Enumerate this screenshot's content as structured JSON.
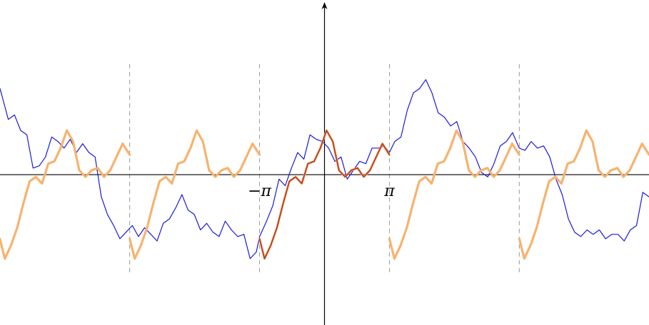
{
  "chart_data": {
    "type": "line",
    "title": "",
    "xlabel": "",
    "ylabel": "",
    "xlim": [
      -15.7,
      15.7
    ],
    "ylim": [
      -6.8,
      7.9
    ],
    "grid": false,
    "x_tick_labels": [
      {
        "x": -3.1416,
        "label": "−π"
      },
      {
        "x": 3.1416,
        "label": "π"
      }
    ],
    "dashed_vertical_lines_at": [
      -9.4248,
      -3.1416,
      3.1416,
      9.4248
    ],
    "colors": {
      "random_walk": "#1a1adb",
      "periodic_extension": "#f7b26e",
      "base_period": "#b0382c",
      "axes": "#000000",
      "guides": "#9a9a9a"
    },
    "series": [
      {
        "role": "random_walk",
        "x": [
          -15.7,
          -15.3,
          -15.0,
          -14.7,
          -14.4,
          -14.1,
          -13.8,
          -13.5,
          -13.2,
          -12.9,
          -12.6,
          -12.3,
          -12.0,
          -11.7,
          -11.4,
          -11.1,
          -10.8,
          -10.5,
          -10.2,
          -9.9,
          -9.6,
          -9.3,
          -9.0,
          -8.7,
          -8.4,
          -8.1,
          -7.8,
          -7.5,
          -7.2,
          -6.9,
          -6.6,
          -6.3,
          -6.0,
          -5.7,
          -5.4,
          -5.1,
          -4.8,
          -4.5,
          -4.2,
          -3.9,
          -3.6,
          -3.3,
          -3.14,
          -2.8,
          -2.5,
          -2.2,
          -1.9,
          -1.6,
          -1.3,
          -1.0,
          -0.7,
          -0.4,
          -0.1,
          0.2,
          0.5,
          0.8,
          1.1,
          1.4,
          1.7,
          2.0,
          2.3,
          2.6,
          2.9,
          3.14,
          3.4,
          3.7,
          4.0,
          4.3,
          4.6,
          4.9,
          5.2,
          5.5,
          5.8,
          6.1,
          6.4,
          6.7,
          7.0,
          7.3,
          7.6,
          7.9,
          8.2,
          8.5,
          8.8,
          9.1,
          9.42,
          9.7,
          10.0,
          10.3,
          10.6,
          10.9,
          11.2,
          11.5,
          11.8,
          12.1,
          12.4,
          12.7,
          13.0,
          13.3,
          13.6,
          13.9,
          14.2,
          14.5,
          14.8,
          15.1,
          15.4,
          15.7
        ],
        "y": [
          3.9,
          2.5,
          2.7,
          2.0,
          1.8,
          0.3,
          0.4,
          0.8,
          1.7,
          1.5,
          1.2,
          1.6,
          1.0,
          1.4,
          1.0,
          0.8,
          -1.0,
          -1.8,
          -2.3,
          -2.9,
          -2.6,
          -2.3,
          -2.8,
          -2.4,
          -2.7,
          -3.0,
          -2.2,
          -2.0,
          -1.5,
          -0.9,
          -1.6,
          -1.8,
          -2.5,
          -2.2,
          -2.6,
          -2.8,
          -2.1,
          -2.5,
          -2.8,
          -2.7,
          -3.8,
          -3.5,
          -2.8,
          -2.1,
          -1.4,
          -0.2,
          -0.5,
          0.3,
          1.0,
          0.7,
          1.8,
          1.6,
          1.5,
          1.2,
          0.6,
          0.8,
          -0.2,
          0.2,
          0.6,
          0.5,
          1.2,
          1.2,
          1.3,
          1.0,
          1.5,
          1.7,
          2.9,
          3.7,
          3.9,
          4.3,
          3.7,
          2.8,
          2.6,
          2.2,
          2.4,
          1.5,
          1.2,
          0.8,
          0.1,
          -0.1,
          0.5,
          1.3,
          1.5,
          1.9,
          1.2,
          1.1,
          1.5,
          1.2,
          1.3,
          0.8,
          -0.2,
          -0.9,
          -2.0,
          -2.6,
          -2.8,
          -2.5,
          -2.7,
          -2.5,
          -2.9,
          -2.7,
          -2.7,
          -3.0,
          -2.5,
          -2.3,
          -0.8,
          -1.0
        ]
      },
      {
        "role": "periodic_extension",
        "x": [
          -3.1416,
          -2.9,
          -2.6,
          -2.3,
          -2.0,
          -1.7,
          -1.4,
          -1.1,
          -0.8,
          -0.5,
          -0.2,
          0.1,
          0.4,
          0.7,
          1.0,
          1.3,
          1.6,
          1.9,
          2.2,
          2.5,
          2.8,
          3.1416
        ],
        "y": [
          -2.9,
          -3.8,
          -3.2,
          -2.4,
          -1.3,
          -0.3,
          -0.1,
          -0.4,
          0.5,
          0.6,
          1.2,
          2.0,
          1.5,
          0.2,
          -0.1,
          0.2,
          0.3,
          -0.1,
          0.2,
          0.8,
          1.4,
          0.9
        ],
        "repeats_every": 6.2832,
        "repetitions": [
          -2,
          -1,
          1,
          2
        ]
      },
      {
        "role": "base_period",
        "x": [
          -3.1416,
          -2.9,
          -2.6,
          -2.3,
          -2.0,
          -1.7,
          -1.4,
          -1.1,
          -0.8,
          -0.5,
          -0.2,
          0.1,
          0.4,
          0.7,
          1.0,
          1.3,
          1.6,
          1.9,
          2.2,
          2.5,
          2.8,
          3.1416
        ],
        "y": [
          -2.9,
          -3.8,
          -3.2,
          -2.4,
          -1.3,
          -0.3,
          -0.1,
          -0.4,
          0.5,
          0.6,
          1.2,
          2.0,
          1.5,
          0.2,
          -0.1,
          0.2,
          0.3,
          -0.1,
          0.2,
          0.8,
          1.4,
          0.9
        ]
      }
    ]
  }
}
